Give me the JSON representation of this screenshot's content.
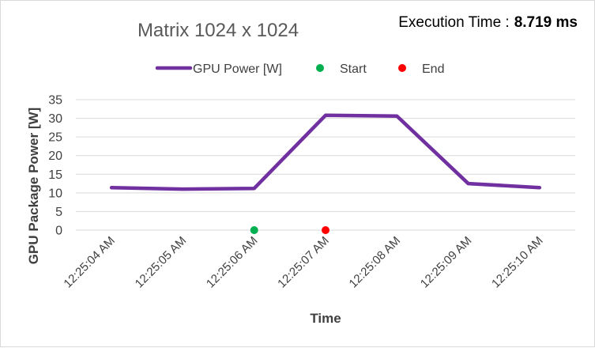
{
  "chart_data": {
    "type": "line",
    "title": "Matrix 1024 x 1024",
    "annotation": {
      "label": "Execution Time :",
      "value": "8.719 ms"
    },
    "xlabel": "Time",
    "ylabel": "GPU Package Power [W]",
    "ylim": [
      0,
      35
    ],
    "yticks": [
      0,
      5,
      10,
      15,
      20,
      25,
      30,
      35
    ],
    "categories": [
      "12:25:04 AM",
      "12:25:05 AM",
      "12:25:06 AM",
      "12:25:07 AM",
      "12:25:08 AM",
      "12:25:09 AM",
      "12:25:10 AM"
    ],
    "grid": true,
    "legend_position": "top",
    "series": [
      {
        "name": "GPU Power [W]",
        "kind": "line",
        "color": "#7030a0",
        "points": [
          {
            "x": "12:25:04 AM",
            "y": 11.4
          },
          {
            "x": "12:25:05 AM",
            "y": 11.0
          },
          {
            "x": "12:25:06 AM",
            "y": 11.2
          },
          {
            "x": "12:25:07 AM",
            "y": 30.8
          },
          {
            "x": "12:25:08 AM",
            "y": 30.6
          },
          {
            "x": "12:25:09 AM",
            "y": 12.5
          },
          {
            "x": "12:25:10 AM",
            "y": 11.4
          }
        ]
      },
      {
        "name": "Start",
        "kind": "marker",
        "color": "#00b050",
        "points": [
          {
            "x": "12:25:06 AM",
            "y": 0
          }
        ]
      },
      {
        "name": "End",
        "kind": "marker",
        "color": "#ff0000",
        "points": [
          {
            "x": "12:25:07 AM",
            "y": 0
          }
        ]
      }
    ]
  }
}
